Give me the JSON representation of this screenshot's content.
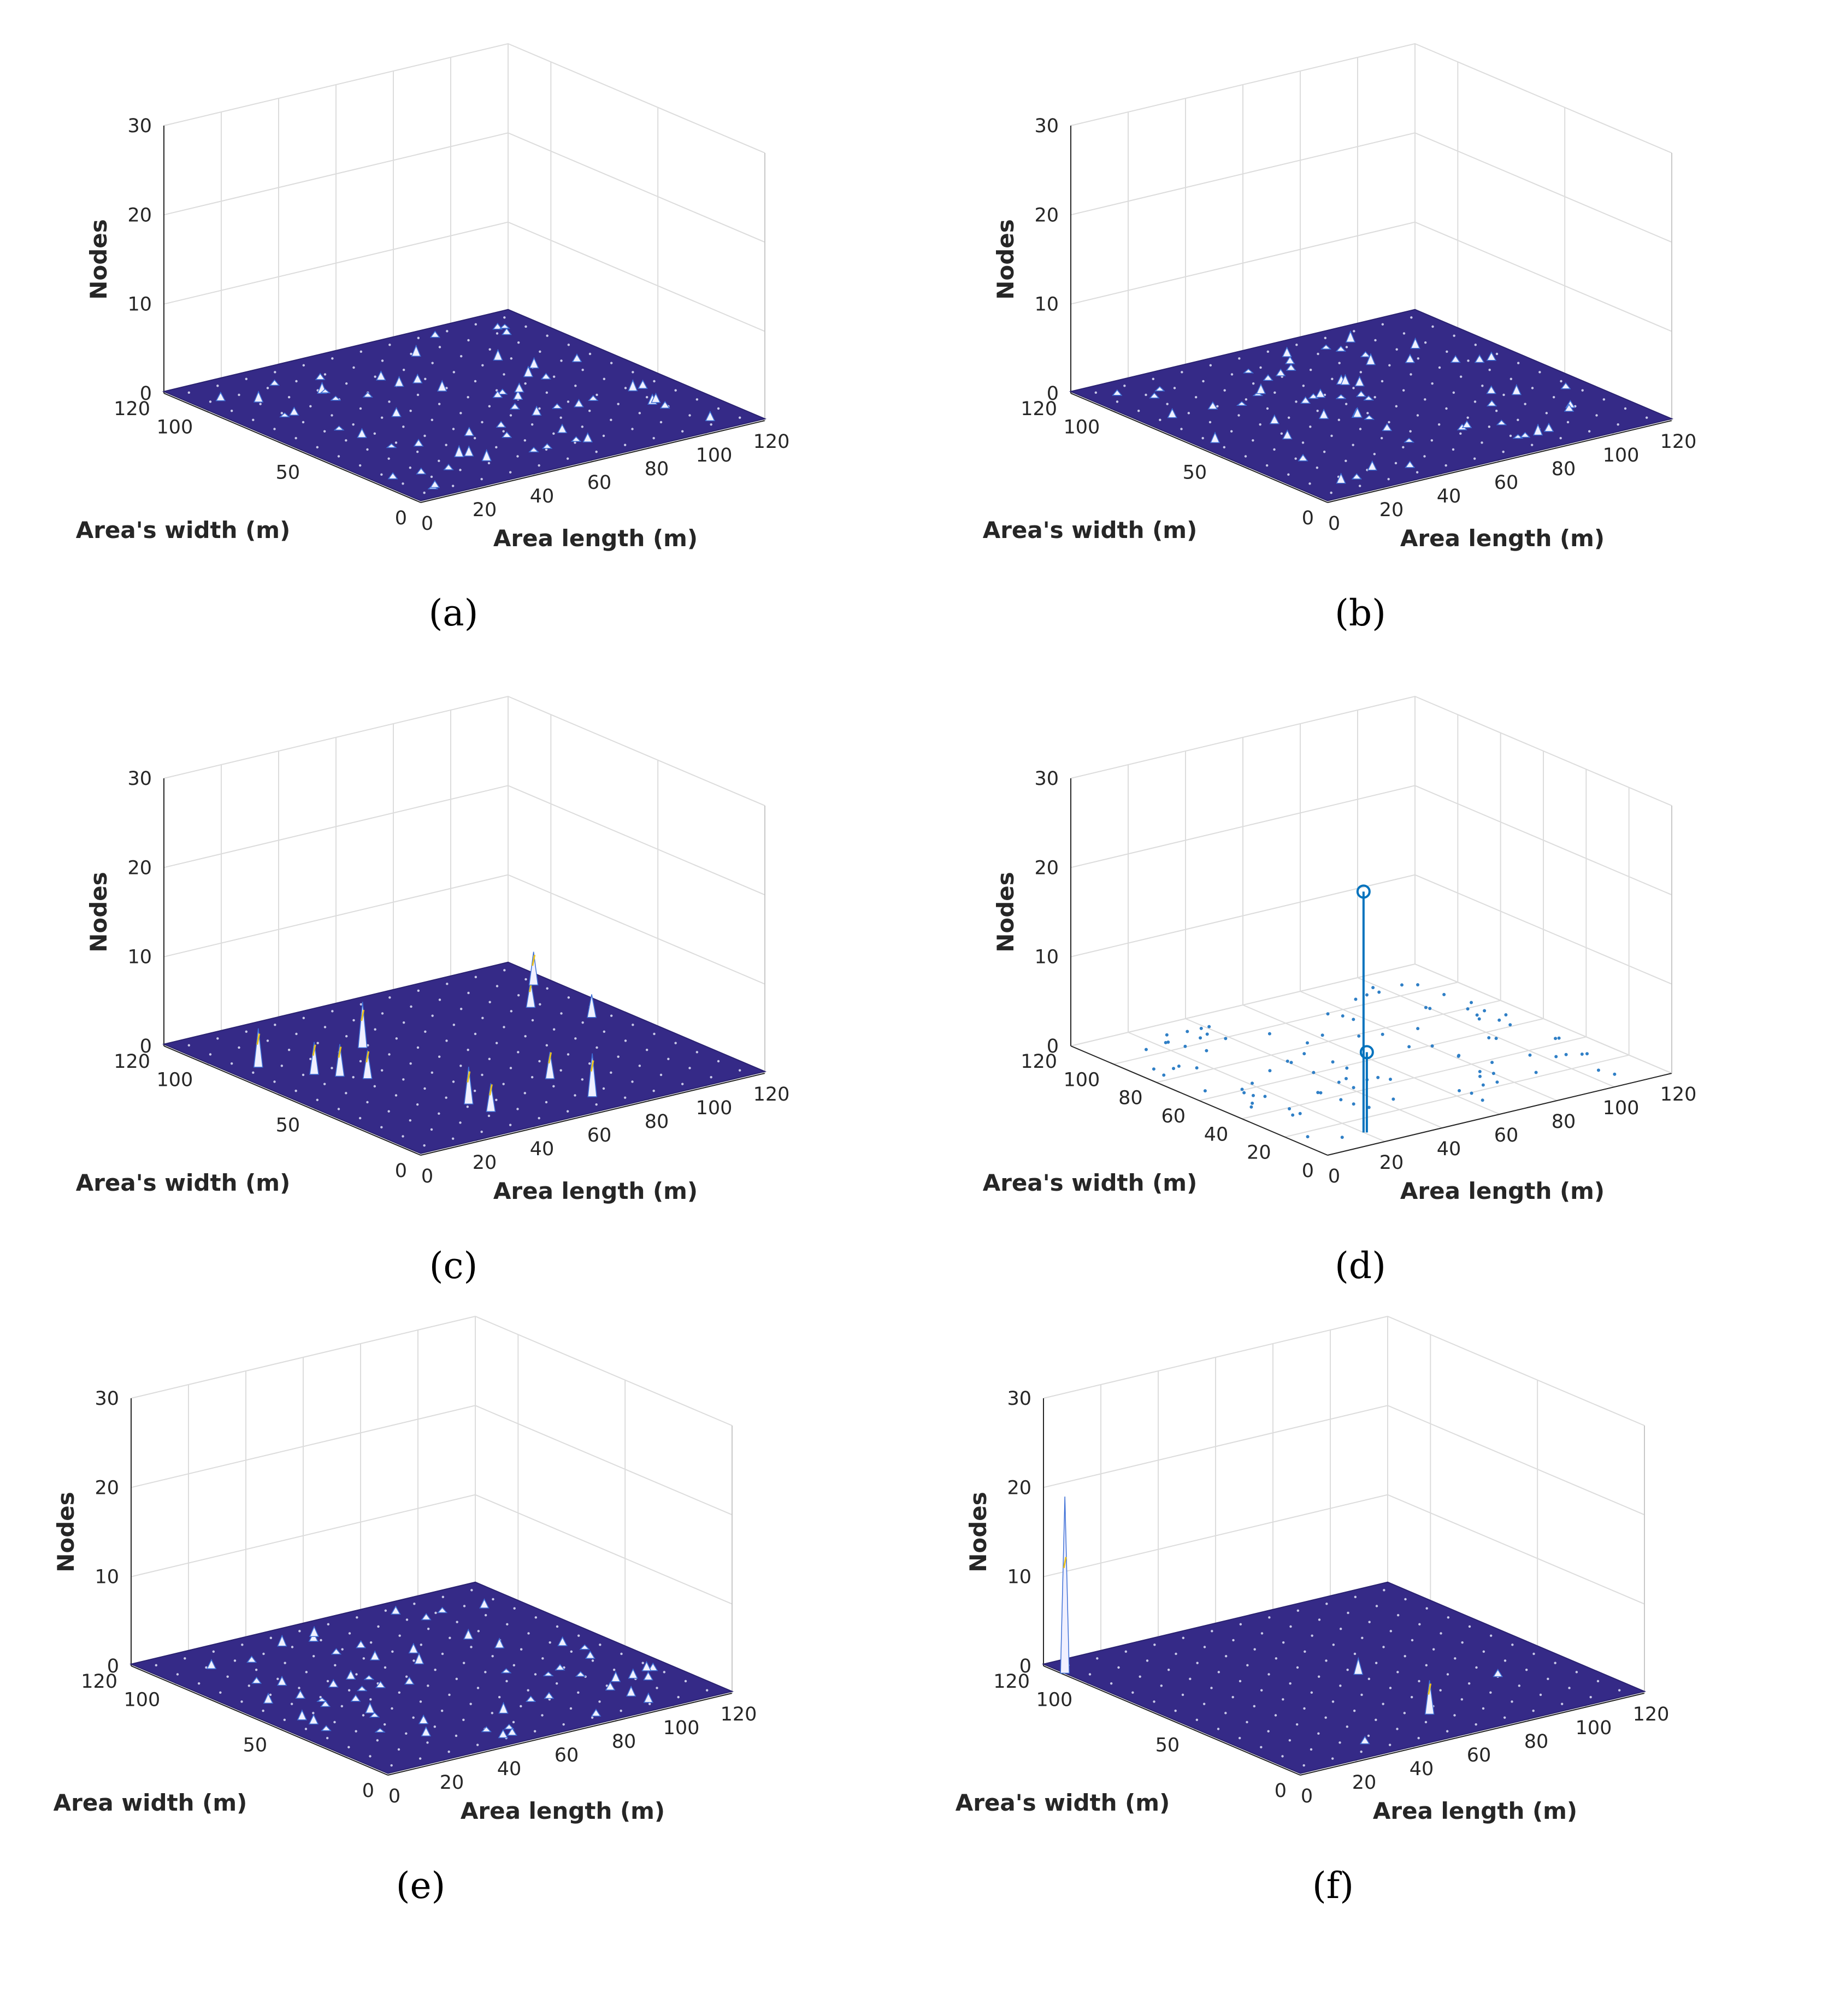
{
  "figure": {
    "panels": [
      {
        "id": "a",
        "caption": "(a)",
        "style": "surface",
        "peaks": "sparse",
        "xlabel": "Area length (m)",
        "ylabel": "Area's width (m)",
        "zlabel": "Nodes"
      },
      {
        "id": "b",
        "caption": "(b)",
        "style": "surface",
        "peaks": "sparse",
        "xlabel": "Area length (m)",
        "ylabel": "Area's width (m)",
        "zlabel": "Nodes"
      },
      {
        "id": "c",
        "caption": "(c)",
        "style": "surface",
        "peaks": "few-clusters",
        "xlabel": "Area length (m)",
        "ylabel": "Area's width (m)",
        "zlabel": "Nodes"
      },
      {
        "id": "d",
        "caption": "(d)",
        "style": "stem",
        "peaks": "two-stems",
        "xlabel": "Area length (m)",
        "ylabel": "Area's width (m)",
        "zlabel": "Nodes"
      },
      {
        "id": "e",
        "caption": "(e)",
        "style": "surface",
        "peaks": "sparse",
        "xlabel": "Area length (m)",
        "ylabel": "Area width (m)",
        "zlabel": "Nodes"
      },
      {
        "id": "f",
        "caption": "(f)",
        "style": "surface",
        "peaks": "one-tall-spike",
        "xlabel": "Area length (m)",
        "ylabel": "Area's width (m)",
        "zlabel": "Nodes"
      }
    ]
  },
  "chart_data": [
    {
      "type": "surface",
      "panel": "a",
      "title": "",
      "xlabel": "Area length (m)",
      "ylabel": "Area's width (m)",
      "zlabel": "Nodes",
      "xlim": [
        0,
        120
      ],
      "ylim": [
        0,
        120
      ],
      "zlim": [
        0,
        30
      ],
      "xticks": [
        "0",
        "20",
        "40",
        "60",
        "80",
        "100",
        "120"
      ],
      "yticks": [
        "0",
        "50",
        "100",
        "120"
      ],
      "zticks": [
        "0",
        "10",
        "20",
        "30"
      ],
      "grid": true,
      "max_z": 1,
      "description_values": {
        "node_peaks_count": 60,
        "peak_height": 1
      }
    },
    {
      "type": "surface",
      "panel": "b",
      "title": "",
      "xlabel": "Area length (m)",
      "ylabel": "Area's width (m)",
      "zlabel": "Nodes",
      "xlim": [
        0,
        120
      ],
      "ylim": [
        0,
        120
      ],
      "zlim": [
        0,
        30
      ],
      "xticks": [
        "0",
        "20",
        "40",
        "60",
        "80",
        "100",
        "120"
      ],
      "yticks": [
        "0",
        "50",
        "100",
        "120"
      ],
      "zticks": [
        "0",
        "10",
        "20",
        "30"
      ],
      "grid": true,
      "max_z": 1,
      "description_values": {
        "node_peaks_count": 60,
        "peak_height": 1
      }
    },
    {
      "type": "surface",
      "panel": "c",
      "title": "",
      "xlabel": "Area length (m)",
      "ylabel": "Area's width (m)",
      "zlabel": "Nodes",
      "xlim": [
        0,
        120
      ],
      "ylim": [
        0,
        120
      ],
      "zlim": [
        0,
        30
      ],
      "xticks": [
        "0",
        "20",
        "40",
        "60",
        "80",
        "100",
        "120"
      ],
      "yticks": [
        "0",
        "50",
        "100",
        "120"
      ],
      "zticks": [
        "0",
        "10",
        "20",
        "30"
      ],
      "grid": true,
      "max_z": 6,
      "description_values": {
        "node_peaks_count": 12,
        "peak_height": 4
      }
    },
    {
      "type": "stem3",
      "panel": "d",
      "title": "",
      "xlabel": "Area length (m)",
      "ylabel": "Area's width (m)",
      "zlabel": "Nodes",
      "xlim": [
        0,
        120
      ],
      "ylim": [
        0,
        120
      ],
      "zlim": [
        0,
        30
      ],
      "xticks": [
        "0",
        "20",
        "40",
        "60",
        "80",
        "100",
        "120"
      ],
      "yticks": [
        "0",
        "20",
        "40",
        "60",
        "80",
        "100",
        "120"
      ],
      "zticks": [
        "0",
        "10",
        "20",
        "30"
      ],
      "grid": true,
      "stems": [
        {
          "x": 20,
          "y": 10,
          "z": 27
        },
        {
          "x": 20,
          "y": 10,
          "z": 9
        }
      ],
      "scatter_nodes_count": 100
    },
    {
      "type": "surface",
      "panel": "e",
      "title": "",
      "xlabel": "Area length (m)",
      "ylabel": "Area width (m)",
      "zlabel": "Nodes",
      "xlim": [
        0,
        120
      ],
      "ylim": [
        0,
        120
      ],
      "zlim": [
        0,
        30
      ],
      "xticks": [
        "0",
        "20",
        "40",
        "60",
        "80",
        "100",
        "120"
      ],
      "yticks": [
        "0",
        "50",
        "100",
        "120"
      ],
      "zticks": [
        "0",
        "10",
        "20",
        "30"
      ],
      "grid": true,
      "max_z": 1,
      "description_values": {
        "node_peaks_count": 60,
        "peak_height": 1
      }
    },
    {
      "type": "surface",
      "panel": "f",
      "title": "",
      "xlabel": "Area length (m)",
      "ylabel": "Area's width (m)",
      "zlabel": "Nodes",
      "xlim": [
        0,
        120
      ],
      "ylim": [
        0,
        120
      ],
      "zlim": [
        0,
        30
      ],
      "xticks": [
        "0",
        "20",
        "40",
        "60",
        "80",
        "100",
        "120"
      ],
      "yticks": [
        "0",
        "50",
        "100",
        "120"
      ],
      "zticks": [
        "0",
        "10",
        "20",
        "30"
      ],
      "grid": true,
      "max_z": 20,
      "spikes": [
        {
          "x": 0,
          "y": 110,
          "z": 20
        },
        {
          "x": 60,
          "y": 20,
          "z": 4
        },
        {
          "x": 65,
          "y": 60,
          "z": 2
        },
        {
          "x": 95,
          "y": 35,
          "z": 1
        },
        {
          "x": 30,
          "y": 10,
          "z": 1
        }
      ]
    }
  ]
}
